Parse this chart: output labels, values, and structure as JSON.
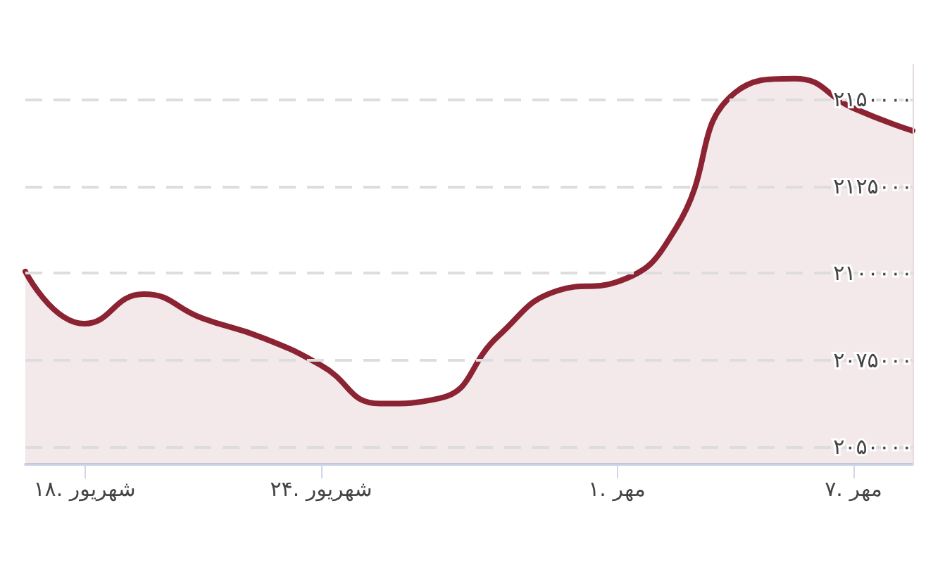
{
  "chart_data": {
    "type": "area",
    "categories": [
      null,
      "شهریور .۱۸",
      null,
      null,
      null,
      "شهریور .۲۴",
      null,
      null,
      null,
      null,
      "مهر .۱",
      null,
      null,
      null,
      "مهر .۷",
      null
    ],
    "series": [
      {
        "color": "#8b2332",
        "values": [
          2100500,
          2085500,
          2094000,
          2087000,
          2081500,
          2073500,
          2062500,
          2064000,
          2082000,
          2095000,
          2097500,
          2113000,
          2152000,
          2156000,
          2147500,
          2141000
        ]
      }
    ],
    "ylim": [
      2045000,
      2160000
    ],
    "yticks": [
      {
        "value": 2050000,
        "label": "۲۰۵۰۰۰۰"
      },
      {
        "value": 2075000,
        "label": "۲۰۷۵۰۰۰"
      },
      {
        "value": 2100000,
        "label": "۲۱۰۰۰۰۰"
      },
      {
        "value": 2125000,
        "label": "۲۱۲۵۰۰۰"
      },
      {
        "value": 2150000,
        "label": "۲۱۵۰۰۰۰"
      }
    ],
    "grid": "y"
  }
}
